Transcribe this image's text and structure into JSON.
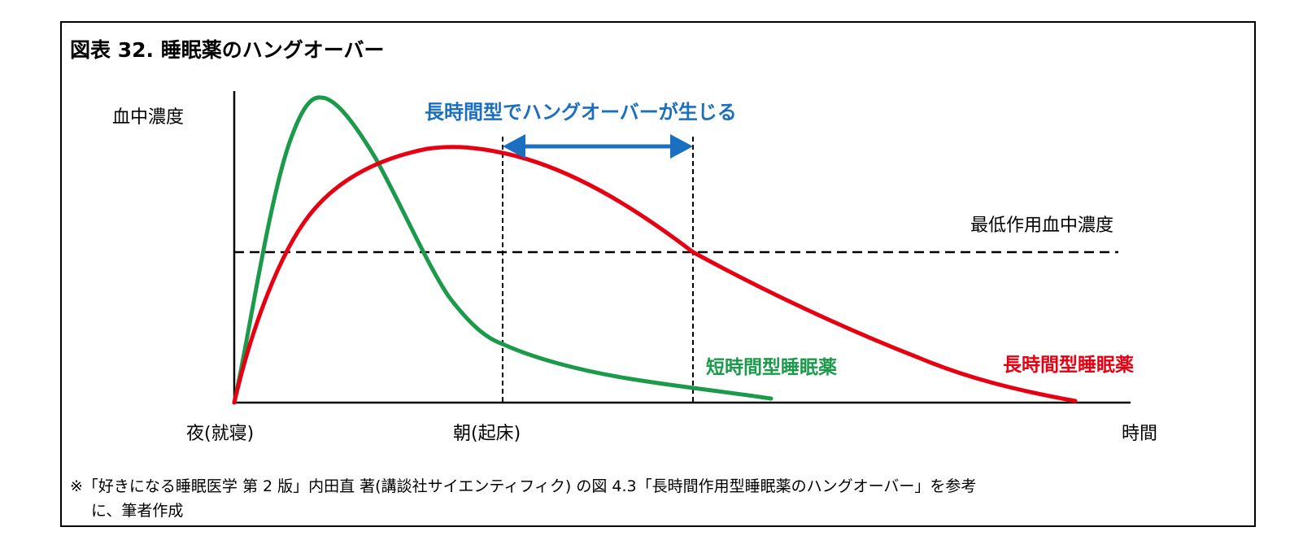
{
  "title": "図表 32. 睡眠薬のハングオーバー",
  "diagram": {
    "y_axis_label": "血中濃度",
    "x_axis_label": "時間",
    "x_ticks": {
      "night": "夜(就寝)",
      "morning": "朝(起床)"
    },
    "threshold_label": "最低作用血中濃度",
    "hangover_label": "長時間型でハングオーバーが生じる",
    "series": {
      "short": {
        "name": "短時間型睡眠薬",
        "color": "#1a9a4a"
      },
      "long": {
        "name": "長時間型睡眠薬",
        "color": "#e60012"
      }
    },
    "arrow_color": "#1a6fc0"
  },
  "footnote": {
    "line1": "※「好きになる睡眠医学 第 2 版」内田直 著(講談社サイエンティフィク) の図 4.3「長時間作用型睡眠薬のハングオーバー」を参考",
    "line2": "に、筆者作成"
  }
}
